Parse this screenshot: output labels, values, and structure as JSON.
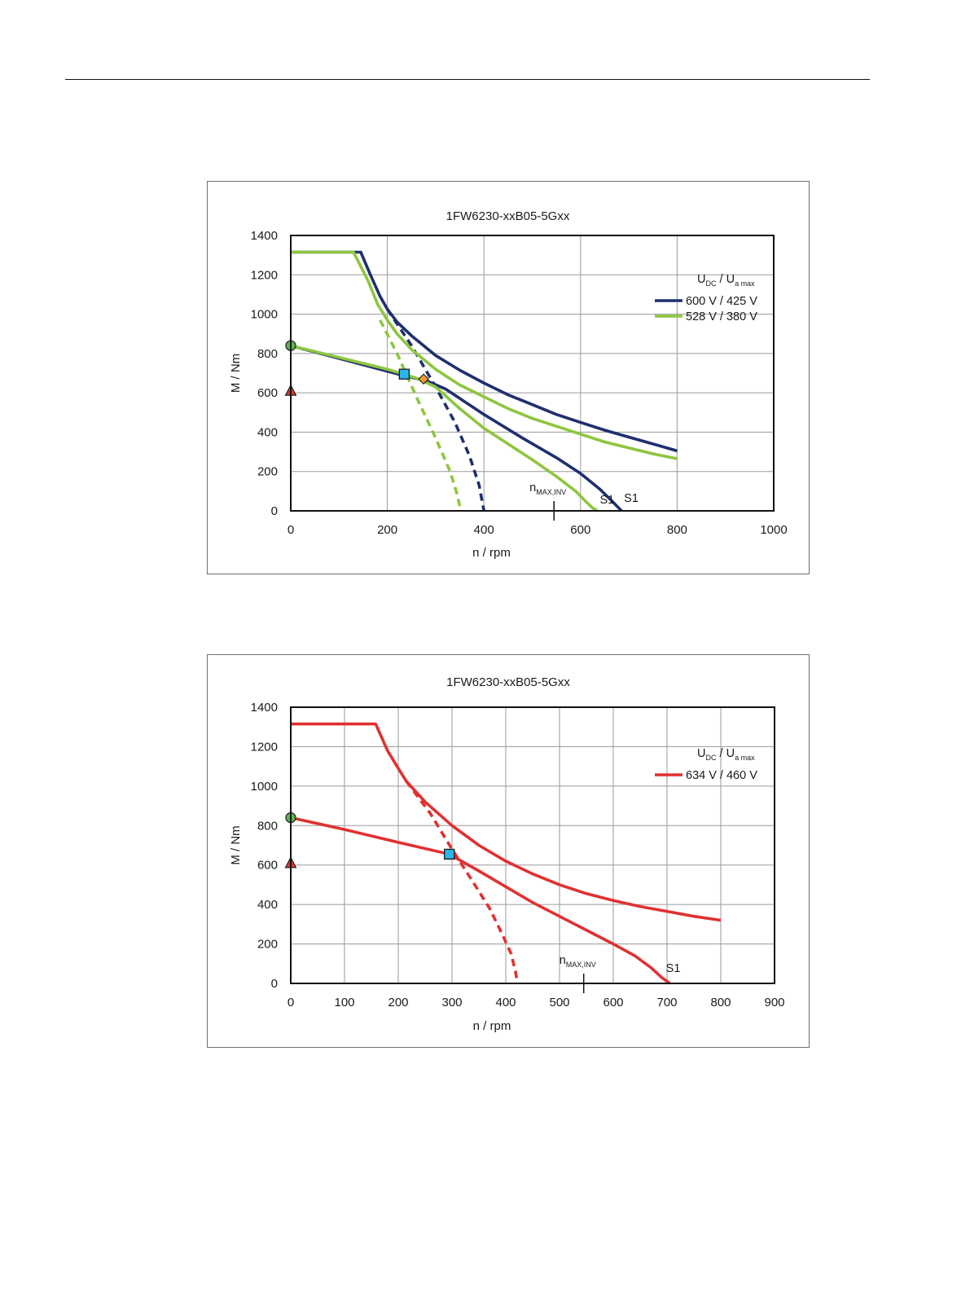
{
  "chart_data": [
    {
      "type": "line",
      "title": "1FW6230-xxB05-5Gxx",
      "xlabel": "n / rpm",
      "ylabel": "M / Nm",
      "xlim": [
        0,
        1000
      ],
      "ylim": [
        0,
        1400
      ],
      "xticks": [
        "0",
        "200",
        "400",
        "600",
        "800",
        "1000"
      ],
      "yticks": [
        "0",
        "200",
        "400",
        "600",
        "800",
        "1000",
        "1200",
        "1400"
      ],
      "grid": true,
      "legend_position": "top-right",
      "legend_title": {
        "u1": "U",
        "u1_sub": "DC",
        "slash": "/",
        "u2": "U",
        "u2_sub": "a max"
      },
      "nmax_label": {
        "n": "n",
        "sub": "MAX,INV",
        "x": 545
      },
      "s1_labels": [
        {
          "text": "S1",
          "x": 640,
          "y": 30
        },
        {
          "text": "S1",
          "x": 690,
          "y": 38
        }
      ],
      "series": [
        {
          "name": "600 V / 425 V",
          "color": "#1f2f6e",
          "style": "solid",
          "x": [
            0,
            145,
            165,
            185,
            200,
            220,
            250,
            300,
            350,
            400,
            450,
            500,
            550,
            600,
            650,
            700,
            750,
            800
          ],
          "y": [
            1315,
            1315,
            1200,
            1090,
            1025,
            960,
            890,
            790,
            715,
            650,
            590,
            540,
            490,
            450,
            410,
            375,
            340,
            305
          ]
        },
        {
          "name": "",
          "color": "#1f2f6e",
          "style": "solid",
          "x": [
            0,
            230,
            280,
            320,
            400,
            480,
            550,
            600,
            640,
            665,
            685
          ],
          "y": [
            840,
            690,
            662,
            620,
            490,
            370,
            270,
            190,
            110,
            50,
            0
          ]
        },
        {
          "name": "",
          "color": "#1f2f6e",
          "style": "dashed",
          "x": [
            200,
            250,
            300,
            340,
            370,
            390,
            400
          ],
          "y": [
            1025,
            840,
            630,
            450,
            280,
            130,
            0
          ]
        },
        {
          "name": "528 V / 380 V",
          "color": "#8dc63f",
          "style": "solid",
          "x": [
            0,
            130,
            160,
            180,
            200,
            220,
            250,
            300,
            350,
            400,
            450,
            500,
            550,
            600,
            650,
            700,
            750,
            800
          ],
          "y": [
            1315,
            1315,
            1170,
            1050,
            970,
            900,
            820,
            720,
            640,
            580,
            520,
            470,
            430,
            390,
            350,
            320,
            290,
            265
          ]
        },
        {
          "name": "",
          "color": "#8dc63f",
          "style": "solid",
          "x": [
            0,
            200,
            260,
            300,
            350,
            400,
            450,
            500,
            550,
            590,
            610,
            625,
            635
          ],
          "y": [
            840,
            720,
            675,
            630,
            520,
            420,
            340,
            260,
            175,
            100,
            50,
            15,
            0
          ]
        },
        {
          "name": "",
          "color": "#8dc63f",
          "style": "dashed",
          "x": [
            185,
            220,
            260,
            300,
            330,
            345,
            352
          ],
          "y": [
            970,
            800,
            580,
            370,
            200,
            80,
            0
          ]
        }
      ],
      "markers": [
        {
          "shape": "circle",
          "x": 0,
          "y": 840,
          "color": "#5ab84a"
        },
        {
          "shape": "triangle",
          "x": 0,
          "y": 610,
          "color": "#d93a2b"
        },
        {
          "shape": "square",
          "x": 235,
          "y": 695,
          "color": "#29b6e8"
        },
        {
          "shape": "diamond",
          "x": 275,
          "y": 670,
          "color": "#f39a2e"
        }
      ]
    },
    {
      "type": "line",
      "title": "1FW6230-xxB05-5Gxx",
      "xlabel": "n / rpm",
      "ylabel": "M / Nm",
      "xlim": [
        0,
        900
      ],
      "ylim": [
        0,
        1400
      ],
      "xticks": [
        "0",
        "100",
        "200",
        "300",
        "400",
        "500",
        "600",
        "700",
        "800",
        "900"
      ],
      "yticks": [
        "0",
        "200",
        "400",
        "600",
        "800",
        "1000",
        "1200",
        "1400"
      ],
      "grid": true,
      "legend_position": "top-right",
      "legend_title": {
        "u1": "U",
        "u1_sub": "DC",
        "slash": "/",
        "u2": "U",
        "u2_sub": "a max"
      },
      "nmax_label": {
        "n": "n",
        "sub": "MAX,INV",
        "x": 545
      },
      "s1_labels": [
        {
          "text": "S1",
          "x": 698,
          "y": 50
        }
      ],
      "series": [
        {
          "name": "634 V / 460 V",
          "color": "#e03131",
          "style": "solid",
          "x": [
            0,
            158,
            180,
            200,
            215,
            250,
            300,
            350,
            400,
            450,
            500,
            550,
            600,
            650,
            700,
            750,
            800
          ],
          "y": [
            1315,
            1315,
            1180,
            1090,
            1025,
            920,
            800,
            700,
            620,
            555,
            500,
            455,
            420,
            390,
            365,
            340,
            320
          ]
        },
        {
          "name": "",
          "color": "#e03131",
          "style": "solid",
          "x": [
            0,
            100,
            200,
            295,
            350,
            400,
            450,
            500,
            550,
            600,
            640,
            670,
            690,
            705
          ],
          "y": [
            840,
            780,
            715,
            655,
            570,
            490,
            410,
            340,
            270,
            200,
            140,
            80,
            30,
            0
          ]
        },
        {
          "name": "",
          "color": "#e03131",
          "style": "dashed",
          "x": [
            215,
            260,
            300,
            340,
            370,
            395,
            410,
            418,
            422
          ],
          "y": [
            1025,
            860,
            680,
            510,
            380,
            240,
            150,
            60,
            0
          ]
        }
      ],
      "markers": [
        {
          "shape": "circle",
          "x": 0,
          "y": 840,
          "color": "#5ab84a"
        },
        {
          "shape": "triangle",
          "x": 0,
          "y": 610,
          "color": "#d93a2b"
        },
        {
          "shape": "square",
          "x": 295,
          "y": 655,
          "color": "#29b6e8"
        }
      ]
    }
  ]
}
